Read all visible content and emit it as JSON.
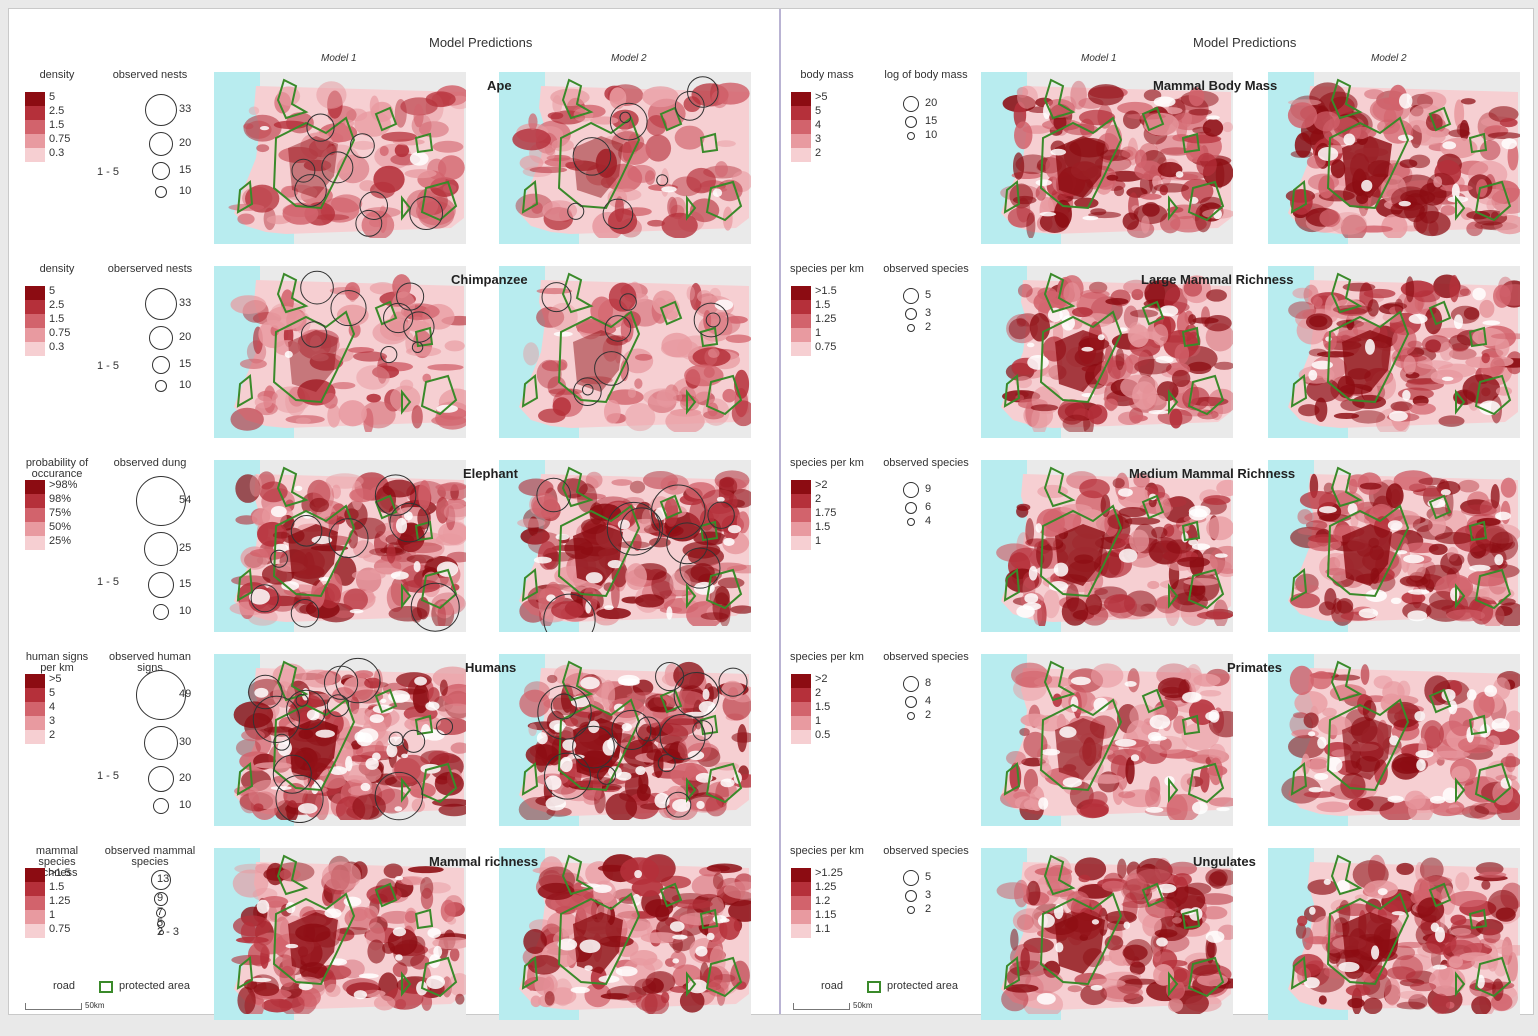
{
  "header": "Model Predictions",
  "model_labels": [
    "Model 1",
    "Model 2"
  ],
  "colors": {
    "ramp": [
      "#8c0c12",
      "#b5303a",
      "#d2636c",
      "#e89aa0",
      "#f6cfd2"
    ],
    "sea": "#b8ecef",
    "protected_area": "#3a8a2a"
  },
  "left": {
    "rows": [
      {
        "title": "Ape",
        "legend_title": "density",
        "ramp_labels": [
          "5",
          "2.5",
          "1.5",
          "0.75",
          "0.3"
        ],
        "obs_title": "observed nests",
        "obs_labels": [
          "33",
          "20",
          "15",
          "10"
        ],
        "obs_min": "1 - 5"
      },
      {
        "title": "Chimpanzee",
        "legend_title": "density",
        "ramp_labels": [
          "5",
          "2.5",
          "1.5",
          "0.75",
          "0.3"
        ],
        "obs_title": "oberserved nests",
        "obs_labels": [
          "33",
          "20",
          "15",
          "10"
        ],
        "obs_min": "1 - 5"
      },
      {
        "title": "Elephant",
        "legend_title": "probability of occurance",
        "ramp_labels": [
          ">98%",
          "98%",
          "75%",
          "50%",
          "25%"
        ],
        "obs_title": "observed dung",
        "obs_labels": [
          "54",
          "25",
          "15",
          "10"
        ],
        "obs_min": "1 - 5"
      },
      {
        "title": "Humans",
        "legend_title": "human signs per km",
        "ramp_labels": [
          ">5",
          "5",
          "4",
          "3",
          "2"
        ],
        "obs_title": "observed human signs",
        "obs_labels": [
          "49",
          "30",
          "20",
          "10"
        ],
        "obs_min": "1 - 5"
      },
      {
        "title": "Mammal richness",
        "legend_title": "mammal species richness",
        "ramp_labels": [
          ">1.5",
          "1.5",
          "1.25",
          "1",
          "0.75"
        ],
        "obs_title": "observed mammal species",
        "obs_labels": [
          "13",
          "9",
          "7",
          "5",
          "2 - 3"
        ],
        "obs_min": ""
      }
    ]
  },
  "right": {
    "rows": [
      {
        "title": "Mammal Body Mass",
        "legend_title": "body mass",
        "ramp_labels": [
          ">5",
          "5",
          "4",
          "3",
          "2"
        ],
        "obs_title": "log of body mass",
        "obs_labels": [
          "20",
          "15",
          "10"
        ]
      },
      {
        "title": "Large Mammal Richness",
        "legend_title": "species per km",
        "ramp_labels": [
          ">1.5",
          "1.5",
          "1.25",
          "1",
          "0.75"
        ],
        "obs_title": "observed species",
        "obs_labels": [
          "5",
          "3",
          "2"
        ]
      },
      {
        "title": "Medium Mammal Richness",
        "legend_title": "species per km",
        "ramp_labels": [
          ">2",
          "2",
          "1.75",
          "1.5",
          "1"
        ],
        "obs_title": "observed species",
        "obs_labels": [
          "9",
          "6",
          "4"
        ]
      },
      {
        "title": "Primates",
        "legend_title": "species per km",
        "ramp_labels": [
          ">2",
          "2",
          "1.5",
          "1",
          "0.5"
        ],
        "obs_title": "observed species",
        "obs_labels": [
          "8",
          "4",
          "2"
        ]
      },
      {
        "title": "Ungulates",
        "legend_title": "species per km",
        "ramp_labels": [
          ">1.25",
          "1.25",
          "1.2",
          "1.15",
          "1.1"
        ],
        "obs_title": "observed species",
        "obs_labels": [
          "5",
          "3",
          "2"
        ]
      }
    ]
  },
  "footer": {
    "road": "road",
    "protected_area": "protected area",
    "scale": "50km"
  }
}
